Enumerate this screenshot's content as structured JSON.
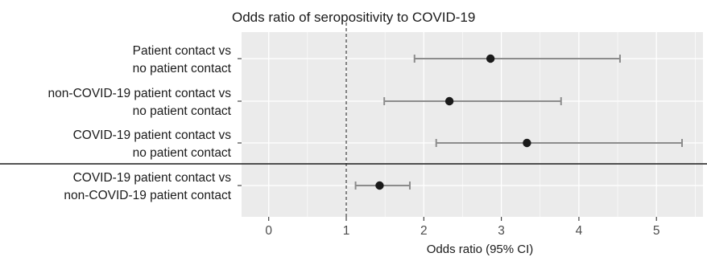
{
  "chart_data": {
    "type": "forest",
    "title": "Odds ratio of seropositivity to COVID-19",
    "xlabel": "Odds ratio (95% CI)",
    "xlim": [
      -0.35,
      5.6
    ],
    "x_ticks": [
      "0",
      "1",
      "2",
      "3",
      "4",
      "5"
    ],
    "reference_line": 1,
    "reference_line_style": "dashed",
    "separator_after_row": 3,
    "grid": true,
    "series": [
      {
        "label_lines": [
          "Patient contact vs",
          "no patient contact"
        ],
        "estimate": 2.86,
        "ci_low": 1.88,
        "ci_high": 4.53
      },
      {
        "label_lines": [
          "non-COVID-19 patient contact vs",
          "no patient contact"
        ],
        "estimate": 2.33,
        "ci_low": 1.49,
        "ci_high": 3.77
      },
      {
        "label_lines": [
          "COVID-19 patient contact vs",
          "no patient contact"
        ],
        "estimate": 3.33,
        "ci_low": 2.16,
        "ci_high": 5.33
      },
      {
        "label_lines": [
          "COVID-19 patient contact vs",
          "non-COVID-19 patient contact"
        ],
        "estimate": 1.43,
        "ci_low": 1.12,
        "ci_high": 1.82
      }
    ],
    "colors": {
      "point": "#1a1a1a",
      "interval": "#8c8c8c",
      "separator": "#1a1a1a",
      "reference": "#1a1a1a"
    }
  }
}
